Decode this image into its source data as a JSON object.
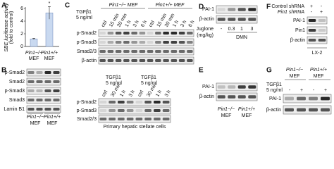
{
  "chart_data": {
    "type": "bar",
    "panel_label": "A",
    "ylabel": [
      "SBE luciferase activity",
      "(fold to control)"
    ],
    "categories": [
      [
        "Pin1−/−",
        "MEF"
      ],
      [
        "Pin1+/+",
        "MEF"
      ]
    ],
    "values": [
      1.2,
      5.3
    ],
    "errors": [
      0.1,
      1.0
    ],
    "color": "#c9d9f0",
    "annotations": [
      "",
      "*"
    ],
    "ylim": [
      0,
      6
    ],
    "yticks": [
      0,
      2,
      4,
      6
    ]
  },
  "panels": {
    "B": {
      "label": "B",
      "rows": [
        "p-Smad2",
        "Smad2",
        "p-Smad3",
        "Smad3",
        "Lamin B1"
      ],
      "columns": [
        [
          "Pin1−/−",
          "MEF"
        ],
        [
          "Pin1+/+",
          "MEF"
        ]
      ]
    },
    "C": {
      "label": "C",
      "treatment": [
        "TGFβ1",
        "5 ng/ml"
      ],
      "groups": [
        "Pin1−/− MEF",
        "Pin1+/+ MEF"
      ],
      "lanes": [
        "ctrl",
        "15 min",
        "30 min",
        "1 h",
        "3 h",
        "6 h",
        "ctrl",
        "15 min",
        "30 min",
        "1 h",
        "3 h",
        "6 h"
      ],
      "rows": [
        "p-Smad2",
        "p-Smad3",
        "Smad2/3",
        "β-actin"
      ],
      "lower_treatments": [
        [
          "TGFβ1",
          "5 ng/ml"
        ],
        [
          "TGFβ1",
          "5 ng/ml"
        ]
      ],
      "lower_lanes": [
        "ctrl",
        "30 min",
        "1 h",
        "3 h",
        "ctrl",
        "30 min",
        "1 h",
        "3 h"
      ],
      "lower_rows": [
        "p-Smad2",
        "p-Smad3",
        "Smad2/3"
      ],
      "caption": "Primary hepatic stellate cells"
    },
    "D": {
      "label": "D",
      "rows": [
        "PAI-1",
        "β-actin"
      ],
      "treatment": [
        "Juglone",
        "(mg/kg)"
      ],
      "doses": [
        "-",
        "0.3",
        "1",
        "3"
      ],
      "group": "DMN"
    },
    "E": {
      "label": "E",
      "rows": [
        "PAI-1",
        "β-actin"
      ],
      "columns": [
        [
          "Pin1−/−",
          "MEF"
        ],
        [
          "Pin1+/+",
          "MEF"
        ]
      ]
    },
    "F": {
      "label": "F",
      "conditions": [
        {
          "name": "Control shRNA",
          "signs": [
            "+",
            "-"
          ]
        },
        {
          "name": "Pin1 shRNA",
          "signs": [
            "-",
            "+"
          ]
        }
      ],
      "rows": [
        "PAI-1",
        "Pin1",
        "β-actin"
      ],
      "cell": "LX-2"
    },
    "G": {
      "label": "G",
      "groups": [
        [
          "Pin1−/−",
          "MEF"
        ],
        [
          "Pin1+/+",
          "MEF"
        ]
      ],
      "treatment": [
        "TGFβ1",
        "5 ng/ml"
      ],
      "signs": [
        "-",
        "+",
        "-",
        "+"
      ],
      "rows": [
        "PAI-1",
        "β-actin"
      ]
    }
  }
}
